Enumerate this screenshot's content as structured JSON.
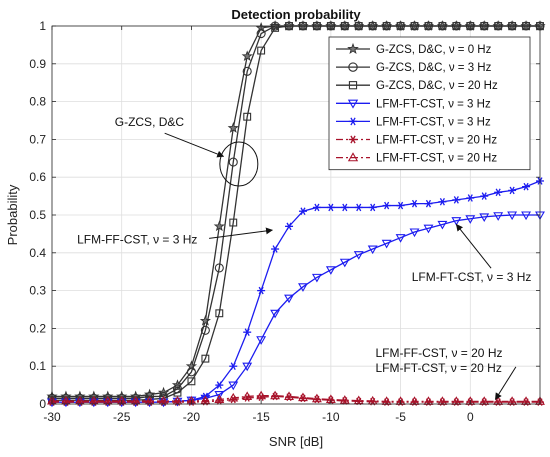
{
  "chart_data": {
    "type": "line",
    "title": "Detection probability",
    "xlabel": "SNR [dB]",
    "ylabel": "Probability",
    "xlim": [
      -30,
      5
    ],
    "ylim": [
      0,
      1
    ],
    "xticks": [
      -30,
      -25,
      -20,
      -15,
      -10,
      -5,
      0
    ],
    "xtick_labels": [
      "-30",
      "-25",
      "-20",
      "-15",
      "-10",
      "-5",
      "0"
    ],
    "yticks": [
      0,
      0.1,
      0.2,
      0.3,
      0.4,
      0.5,
      0.6,
      0.7,
      0.8,
      0.9,
      1
    ],
    "ytick_labels": [
      "0",
      "0.1",
      "0.2",
      "0.3",
      "0.4",
      "0.5",
      "0.6",
      "0.7",
      "0.8",
      "0.9",
      "1"
    ],
    "grid": true,
    "legend_position": "top-right",
    "x": [
      -30,
      -29,
      -28,
      -27,
      -26,
      -25,
      -24,
      -23,
      -22,
      -21,
      -20,
      -19,
      -18,
      -17,
      -16,
      -15,
      -14,
      -13,
      -12,
      -11,
      -10,
      -9,
      -8,
      -7,
      -6,
      -5,
      -4,
      -3,
      -2,
      -1,
      0,
      1,
      2,
      3,
      4,
      5
    ],
    "series": [
      {
        "name": "G-ZCS, D&C, ν = 0 Hz",
        "color": "#333333",
        "marker": "star",
        "dash": "solid",
        "values": [
          0.02,
          0.02,
          0.02,
          0.02,
          0.02,
          0.02,
          0.02,
          0.025,
          0.03,
          0.05,
          0.1,
          0.22,
          0.47,
          0.73,
          0.92,
          0.995,
          1,
          1,
          1,
          1,
          1,
          1,
          1,
          1,
          1,
          1,
          1,
          1,
          1,
          1,
          1,
          1,
          1,
          1,
          1,
          1
        ]
      },
      {
        "name": "G-ZCS, D&C, ν = 3 Hz",
        "color": "#333333",
        "marker": "circle",
        "dash": "solid",
        "values": [
          0.015,
          0.015,
          0.015,
          0.015,
          0.015,
          0.015,
          0.015,
          0.02,
          0.02,
          0.04,
          0.085,
          0.195,
          0.36,
          0.64,
          0.88,
          0.98,
          1,
          1,
          1,
          1,
          1,
          1,
          1,
          1,
          1,
          1,
          1,
          1,
          1,
          1,
          1,
          1,
          1,
          1,
          1,
          1
        ]
      },
      {
        "name": "G-ZCS, D&C, ν = 20 Hz",
        "color": "#333333",
        "marker": "square",
        "dash": "solid",
        "values": [
          0.01,
          0.01,
          0.01,
          0.01,
          0.01,
          0.01,
          0.01,
          0.012,
          0.015,
          0.03,
          0.06,
          0.12,
          0.24,
          0.48,
          0.76,
          0.935,
          0.995,
          1,
          1,
          1,
          1,
          1,
          1,
          1,
          1,
          1,
          1,
          1,
          1,
          1,
          1,
          1,
          1,
          1,
          1,
          1
        ]
      },
      {
        "name": "LFM-FT-CST, ν = 3 Hz",
        "color": "#1c1cf0",
        "marker": "triangle-down",
        "dash": "solid",
        "values": [
          0.005,
          0.005,
          0.005,
          0.005,
          0.005,
          0.005,
          0.005,
          0.005,
          0.005,
          0.007,
          0.01,
          0.015,
          0.025,
          0.05,
          0.1,
          0.17,
          0.24,
          0.28,
          0.31,
          0.335,
          0.355,
          0.375,
          0.395,
          0.41,
          0.425,
          0.44,
          0.455,
          0.465,
          0.475,
          0.485,
          0.49,
          0.495,
          0.498,
          0.5,
          0.5,
          0.5
        ]
      },
      {
        "name": "LFM-FT-CST, ν = 3 Hz",
        "color": "#1c1cf0",
        "marker": "asterisk",
        "dash": "solid",
        "values": [
          0.005,
          0.005,
          0.005,
          0.005,
          0.005,
          0.005,
          0.005,
          0.005,
          0.005,
          0.007,
          0.01,
          0.02,
          0.05,
          0.1,
          0.19,
          0.3,
          0.41,
          0.47,
          0.51,
          0.52,
          0.52,
          0.52,
          0.52,
          0.52,
          0.525,
          0.525,
          0.53,
          0.53,
          0.535,
          0.54,
          0.545,
          0.55,
          0.56,
          0.565,
          0.575,
          0.59
        ]
      },
      {
        "name": "LFM-FT-CST, ν = 20 Hz",
        "color": "#a8122a",
        "marker": "asterisk",
        "dash": "dashdot",
        "values": [
          0.005,
          0.005,
          0.005,
          0.005,
          0.005,
          0.005,
          0.005,
          0.005,
          0.005,
          0.005,
          0.005,
          0.006,
          0.008,
          0.012,
          0.016,
          0.018,
          0.02,
          0.018,
          0.015,
          0.012,
          0.01,
          0.008,
          0.007,
          0.006,
          0.005,
          0.005,
          0.005,
          0.005,
          0.005,
          0.005,
          0.005,
          0.005,
          0.005,
          0.005,
          0.005,
          0.005
        ]
      },
      {
        "name": "LFM-FT-CST, ν = 20 Hz",
        "color": "#a8122a",
        "marker": "triangle-up",
        "dash": "dashdot",
        "values": [
          0.008,
          0.008,
          0.008,
          0.008,
          0.008,
          0.008,
          0.008,
          0.008,
          0.008,
          0.008,
          0.008,
          0.009,
          0.012,
          0.016,
          0.02,
          0.022,
          0.022,
          0.02,
          0.017,
          0.014,
          0.012,
          0.01,
          0.009,
          0.008,
          0.007,
          0.007,
          0.007,
          0.007,
          0.007,
          0.007,
          0.007,
          0.007,
          0.007,
          0.007,
          0.007,
          0.007
        ]
      }
    ],
    "legend_labels": [
      "G-ZCS, D&C, ν = 0 Hz",
      "G-ZCS, D&C, ν = 3 Hz",
      "G-ZCS, D&C, ν = 20 Hz",
      "LFM-FT-CST, ν = 3 Hz",
      "LFM-FT-CST, ν = 3 Hz",
      "LFM-FT-CST, ν = 20 Hz",
      "LFM-FT-CST, ν = 20 Hz"
    ],
    "annotations": [
      {
        "text": "G-ZCS, D&C",
        "x": -25.5,
        "y": 0.735,
        "arrow_to": [
          -17.7,
          0.655
        ]
      },
      {
        "text": "LFM-FF-CST, ν = 3 Hz",
        "x": -28.2,
        "y": 0.425,
        "arrow_to": [
          -14.2,
          0.46
        ]
      },
      {
        "text": "LFM-FT-CST, ν = 3 Hz",
        "x": -4.2,
        "y": 0.325,
        "arrow_to": [
          -1.0,
          0.475
        ]
      },
      {
        "text": "LFM-FF-CST, ν = 20 Hz",
        "x": -6.8,
        "y": 0.125,
        "arrow_to": null
      },
      {
        "text": "LFM-FT-CST, ν = 20 Hz",
        "x": -6.8,
        "y": 0.085,
        "arrow_to": [
          1.8,
          0.012
        ]
      }
    ]
  }
}
